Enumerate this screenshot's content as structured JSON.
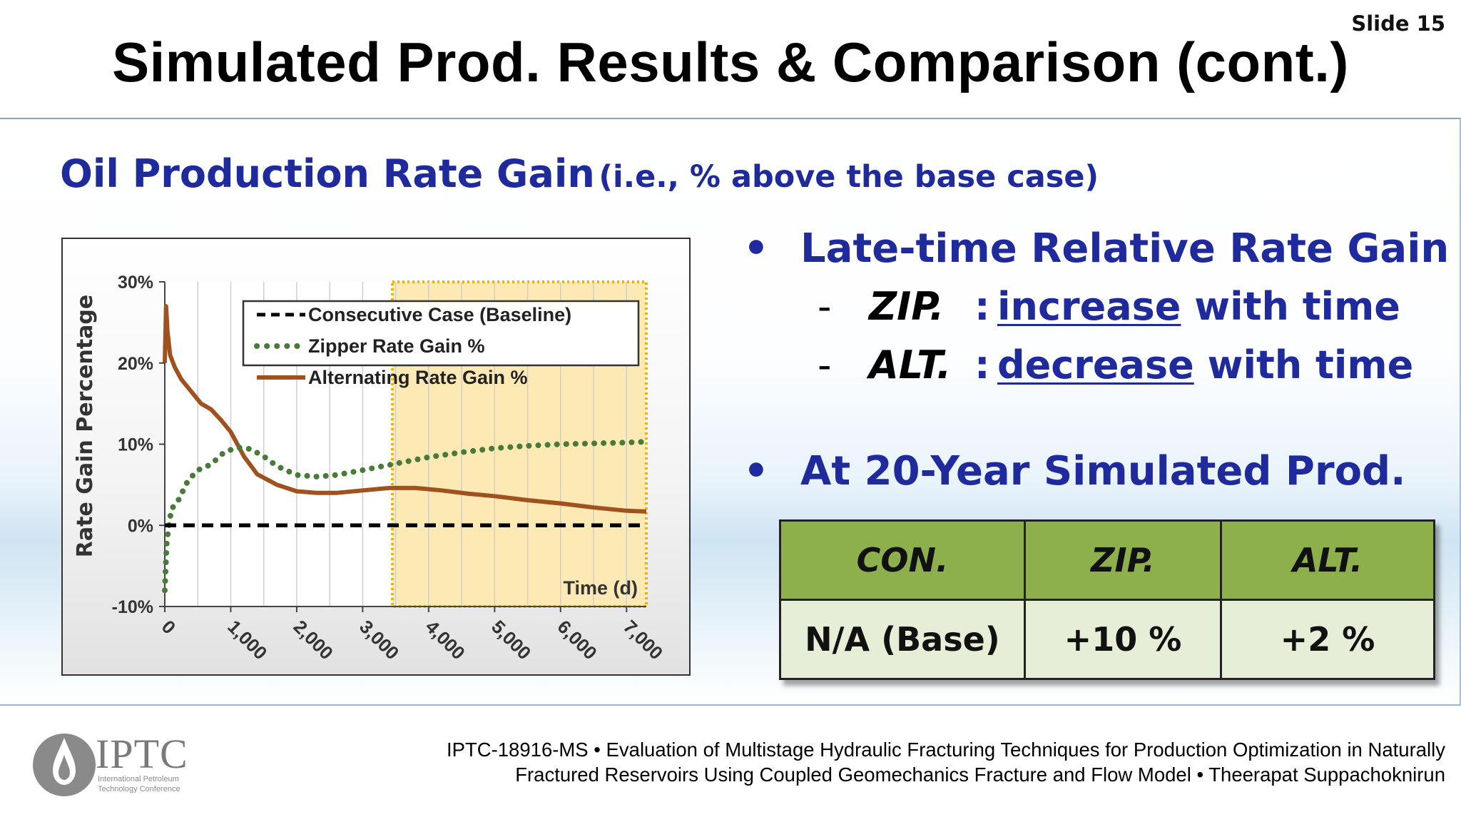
{
  "slide": {
    "number_label": "Slide 15",
    "title": "Simulated Prod. Results & Comparison (cont.)",
    "subtitle_main": "Oil Production Rate Gain",
    "subtitle_paren": "(i.e., % above the base case)"
  },
  "bullets": {
    "dot": "•",
    "b1_text": "Late-time Relative Rate Gain %",
    "sub1": {
      "dash": "-",
      "case": "ZIP.",
      "colon": ":",
      "trend": "increase",
      "rest": "with time"
    },
    "sub2": {
      "dash": "-",
      "case": "ALT.",
      "colon": ":",
      "trend": "decrease",
      "rest": "with time"
    },
    "b2_text": "At 20-Year Simulated Prod."
  },
  "table": {
    "headers": [
      "CON.",
      "ZIP.",
      "ALT."
    ],
    "row": [
      "N/A (Base)",
      "+10 %",
      "+2 %"
    ],
    "header_color": "#8db04c",
    "cell_color": "#e6eed8"
  },
  "footer": {
    "logo_text": "IPTC",
    "logo_sub1": "International Petroleum",
    "logo_sub2": "Technology Conference",
    "citation_line1": "IPTC-18916-MS • Evaluation of Multistage Hydraulic Fracturing Techniques for Production Optimization in Naturally",
    "citation_line2": "Fractured Reservoirs Using Coupled Geomechanics Fracture and Flow Model • Theerapat Suppachoknirun"
  },
  "colors": {
    "accent_blue": "#1f2a9c",
    "alt_series": "#a0521e",
    "zip_series": "#4a7a3a",
    "highlight_fill": "#fde9b4",
    "highlight_border": "#f0b400"
  },
  "chart_data": {
    "type": "line",
    "ylabel": "Rate Gain Percentage",
    "xlabel": "Time (d)",
    "xlim": [
      0,
      7300
    ],
    "ylim": [
      -10,
      30
    ],
    "x_ticks": [
      "0",
      "1,000",
      "2,000",
      "3,000",
      "4,000",
      "5,000",
      "6,000",
      "7,000"
    ],
    "y_ticks": [
      "-10%",
      "0%",
      "10%",
      "20%",
      "30%"
    ],
    "grid": "vertical",
    "legend_position": "top-right",
    "highlight_range": [
      3450,
      7300
    ],
    "series": [
      {
        "name": "Consecutive Case (Baseline)",
        "style": "dashed",
        "color": "#000000",
        "x": [
          0,
          7300
        ],
        "y": [
          0,
          0
        ]
      },
      {
        "name": "Zipper Rate Gain %",
        "style": "dotted",
        "color": "#4a7a3a",
        "x": [
          0,
          30,
          100,
          200,
          350,
          500,
          700,
          900,
          1100,
          1300,
          1500,
          1700,
          2000,
          2300,
          2600,
          3000,
          3500,
          4000,
          4500,
          5000,
          5500,
          6000,
          6500,
          7000,
          7300
        ],
        "y": [
          -8,
          -2,
          2,
          3,
          5.5,
          6.8,
          7.5,
          9,
          9.6,
          9.4,
          8.5,
          7.3,
          6.2,
          6,
          6.2,
          6.8,
          7.6,
          8.4,
          9.0,
          9.5,
          9.8,
          10,
          10.1,
          10.2,
          10.3
        ]
      },
      {
        "name": "Alternating Rate Gain %",
        "style": "solid",
        "color": "#a0521e",
        "x": [
          0,
          20,
          40,
          80,
          150,
          250,
          400,
          550,
          700,
          850,
          1000,
          1200,
          1400,
          1700,
          2000,
          2300,
          2600,
          3000,
          3400,
          3800,
          4200,
          4600,
          5000,
          5500,
          6000,
          6500,
          7000,
          7300
        ],
        "y": [
          20,
          27,
          24,
          21,
          19.5,
          18,
          16.5,
          15,
          14.3,
          13,
          11.5,
          8.5,
          6.3,
          5,
          4.2,
          4.0,
          4.0,
          4.3,
          4.6,
          4.6,
          4.3,
          3.9,
          3.6,
          3.1,
          2.7,
          2.2,
          1.8,
          1.7
        ]
      }
    ]
  }
}
